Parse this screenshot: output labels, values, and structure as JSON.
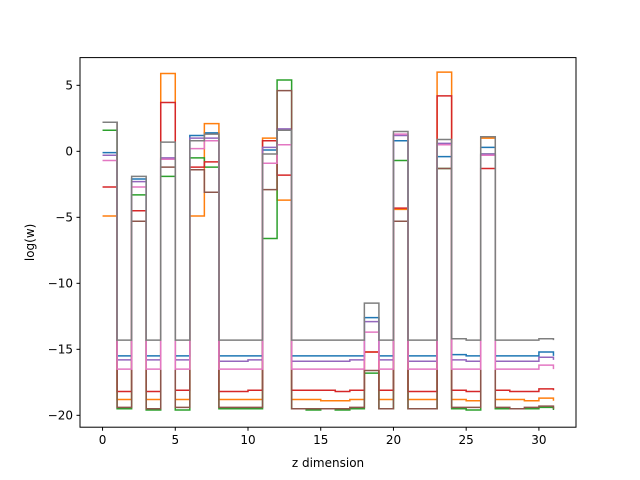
{
  "chart_data": {
    "type": "line",
    "step": "post",
    "title": "",
    "xlabel": "z dimension",
    "ylabel": "log(w)",
    "xlim": [
      -1.55,
      32.55
    ],
    "ylim": [
      -20.9,
      7.1
    ],
    "xticks": [
      0,
      5,
      10,
      15,
      20,
      25,
      30
    ],
    "yticks": [
      5,
      0,
      -5,
      -10,
      -15,
      -20
    ],
    "ytick_labels": [
      "5",
      "0",
      "−5",
      "−10",
      "−15",
      "−20"
    ],
    "grid": false,
    "legend": "none",
    "x": [
      0,
      1,
      2,
      3,
      4,
      5,
      6,
      7,
      8,
      9,
      10,
      11,
      12,
      13,
      14,
      15,
      16,
      17,
      18,
      19,
      20,
      21,
      22,
      23,
      24,
      25,
      26,
      27,
      28,
      29,
      30,
      31
    ],
    "series": [
      {
        "color": "#1f77b4",
        "values": [
          -0.1,
          -15.5,
          -2.1,
          -15.5,
          -0.6,
          -15.5,
          1.2,
          1.4,
          -15.5,
          -15.5,
          -15.5,
          0.1,
          1.6,
          -15.5,
          -15.5,
          -15.5,
          -15.5,
          -15.5,
          -12.6,
          -15.5,
          0.8,
          -15.5,
          -15.5,
          -0.4,
          -15.4,
          -15.5,
          0.3,
          -15.5,
          -15.5,
          -15.5,
          -15.2,
          -15.5
        ]
      },
      {
        "color": "#ff7f0e",
        "values": [
          -4.9,
          -18.8,
          -4.5,
          -18.8,
          5.9,
          -18.8,
          -4.9,
          2.1,
          -18.8,
          -18.8,
          -18.8,
          1.0,
          -3.7,
          -18.8,
          -18.8,
          -18.9,
          -18.9,
          -18.8,
          -15.2,
          -18.8,
          -4.4,
          -18.8,
          -18.8,
          6.0,
          -18.8,
          -18.9,
          1.0,
          -18.8,
          -18.8,
          -18.9,
          -18.7,
          -18.9
        ]
      },
      {
        "color": "#2ca02c",
        "values": [
          1.6,
          -19.5,
          -3.3,
          -19.6,
          -1.9,
          -19.6,
          -0.5,
          -1.2,
          -19.5,
          -19.5,
          -19.5,
          -6.6,
          5.4,
          -19.5,
          -19.6,
          -19.5,
          -19.6,
          -19.5,
          -16.8,
          -19.5,
          -0.7,
          -19.5,
          -19.5,
          -1.3,
          -19.5,
          -19.6,
          -0.2,
          -19.5,
          -19.5,
          -19.5,
          -19.4,
          -19.6
        ]
      },
      {
        "color": "#d62728",
        "values": [
          -2.7,
          -18.2,
          -4.5,
          -18.2,
          3.7,
          -18.1,
          -1.2,
          -0.8,
          -18.2,
          -18.2,
          -18.1,
          0.8,
          -1.8,
          -18.1,
          -18.1,
          -18.1,
          -18.2,
          -18.1,
          -15.2,
          -18.1,
          -4.3,
          -18.2,
          -18.2,
          4.2,
          -18.1,
          -18.2,
          -1.3,
          -18.1,
          -18.2,
          -18.2,
          -18.0,
          -18.1
        ]
      },
      {
        "color": "#9467bd",
        "values": [
          -0.3,
          -15.8,
          -2.3,
          -15.8,
          -0.5,
          -15.8,
          1.0,
          1.0,
          -15.9,
          -15.9,
          -15.8,
          0.3,
          1.7,
          -15.9,
          -15.9,
          -15.9,
          -15.9,
          -15.8,
          -12.9,
          -15.8,
          1.2,
          -15.9,
          -15.9,
          0.6,
          -15.8,
          -15.9,
          -0.2,
          -15.9,
          -15.9,
          -15.9,
          -15.6,
          -15.8
        ]
      },
      {
        "color": "#8c564b",
        "values": [
          2.2,
          -19.4,
          -5.3,
          -19.5,
          -1.2,
          -19.4,
          -1.4,
          -3.1,
          -19.4,
          -19.4,
          -19.4,
          -2.9,
          4.6,
          -19.5,
          -19.5,
          -19.5,
          -19.5,
          -19.4,
          -16.6,
          -19.5,
          -5.3,
          -19.5,
          -19.5,
          -1.3,
          -19.4,
          -19.4,
          -0.3,
          -19.4,
          -19.5,
          -19.4,
          -19.3,
          -19.5
        ]
      },
      {
        "color": "#e377c2",
        "values": [
          -0.7,
          -16.5,
          -2.7,
          -16.5,
          -0.6,
          -16.5,
          0.2,
          0.8,
          -16.5,
          -16.5,
          -16.5,
          -0.9,
          0.5,
          -16.5,
          -16.5,
          -16.5,
          -16.5,
          -16.5,
          -13.7,
          -16.5,
          1.3,
          -16.5,
          -16.5,
          0.5,
          -16.5,
          -16.5,
          -0.3,
          -16.5,
          -16.5,
          -16.5,
          -16.2,
          -16.5
        ]
      },
      {
        "color": "#7f7f7f",
        "values": [
          2.2,
          -14.3,
          -1.9,
          -14.3,
          0.7,
          -14.3,
          0.8,
          1.3,
          -14.3,
          -14.3,
          -14.3,
          -0.2,
          1.6,
          -14.3,
          -14.3,
          -14.3,
          -14.3,
          -14.3,
          -11.5,
          -14.3,
          1.5,
          -14.3,
          -14.3,
          0.9,
          -14.2,
          -14.3,
          1.1,
          -14.3,
          -14.3,
          -14.3,
          -14.2,
          -14.3
        ]
      }
    ]
  }
}
